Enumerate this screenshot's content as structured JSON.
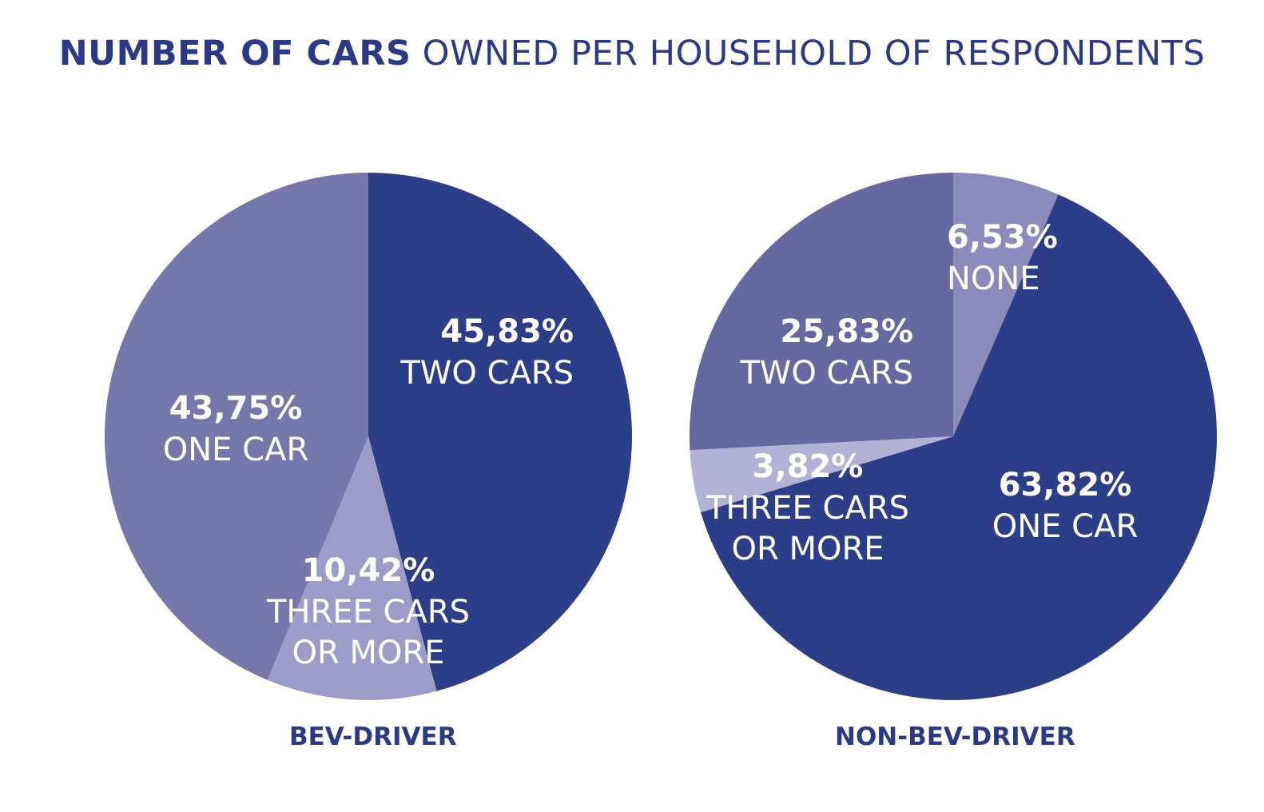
{
  "title": {
    "bold": "NUMBER OF CARS",
    "light": "OWNED PER HOUSEHOLD OF RESPONDENTS"
  },
  "colors": {
    "dark": "#2d3e88",
    "medium": "#7677ab",
    "light": "#9c9cc8",
    "medium2": "#65699f",
    "light2": "#8a8abb",
    "lighter": "#b1b2d6",
    "text": "#2b3a84",
    "label": "#ffffff"
  },
  "chart_data": [
    {
      "type": "pie",
      "caption": "BEV-DRIVER",
      "slices": [
        {
          "label": "TWO CARS",
          "value": 45.83,
          "display": "45,83%",
          "color": "#2d3e88"
        },
        {
          "label": "THREE CARS OR MORE",
          "value": 10.42,
          "display": "10,42%",
          "color": "#9c9cc8",
          "lines": [
            "THREE CARS",
            "OR MORE"
          ]
        },
        {
          "label": "ONE CAR",
          "value": 43.75,
          "display": "43,75%",
          "color": "#7677ab"
        }
      ]
    },
    {
      "type": "pie",
      "caption": "NON-BEV-DRIVER",
      "slices": [
        {
          "label": "NONE",
          "value": 6.53,
          "display": "6,53%",
          "color": "#8a8abb"
        },
        {
          "label": "ONE CAR",
          "value": 63.82,
          "display": "63,82%",
          "color": "#2d3e88"
        },
        {
          "label": "THREE CARS OR MORE",
          "value": 3.82,
          "display": "3,82%",
          "color": "#b1b2d6",
          "lines": [
            "THREE CARS",
            "OR MORE"
          ]
        },
        {
          "label": "TWO CARS",
          "value": 25.83,
          "display": "25,83%",
          "color": "#65699f"
        }
      ]
    }
  ]
}
